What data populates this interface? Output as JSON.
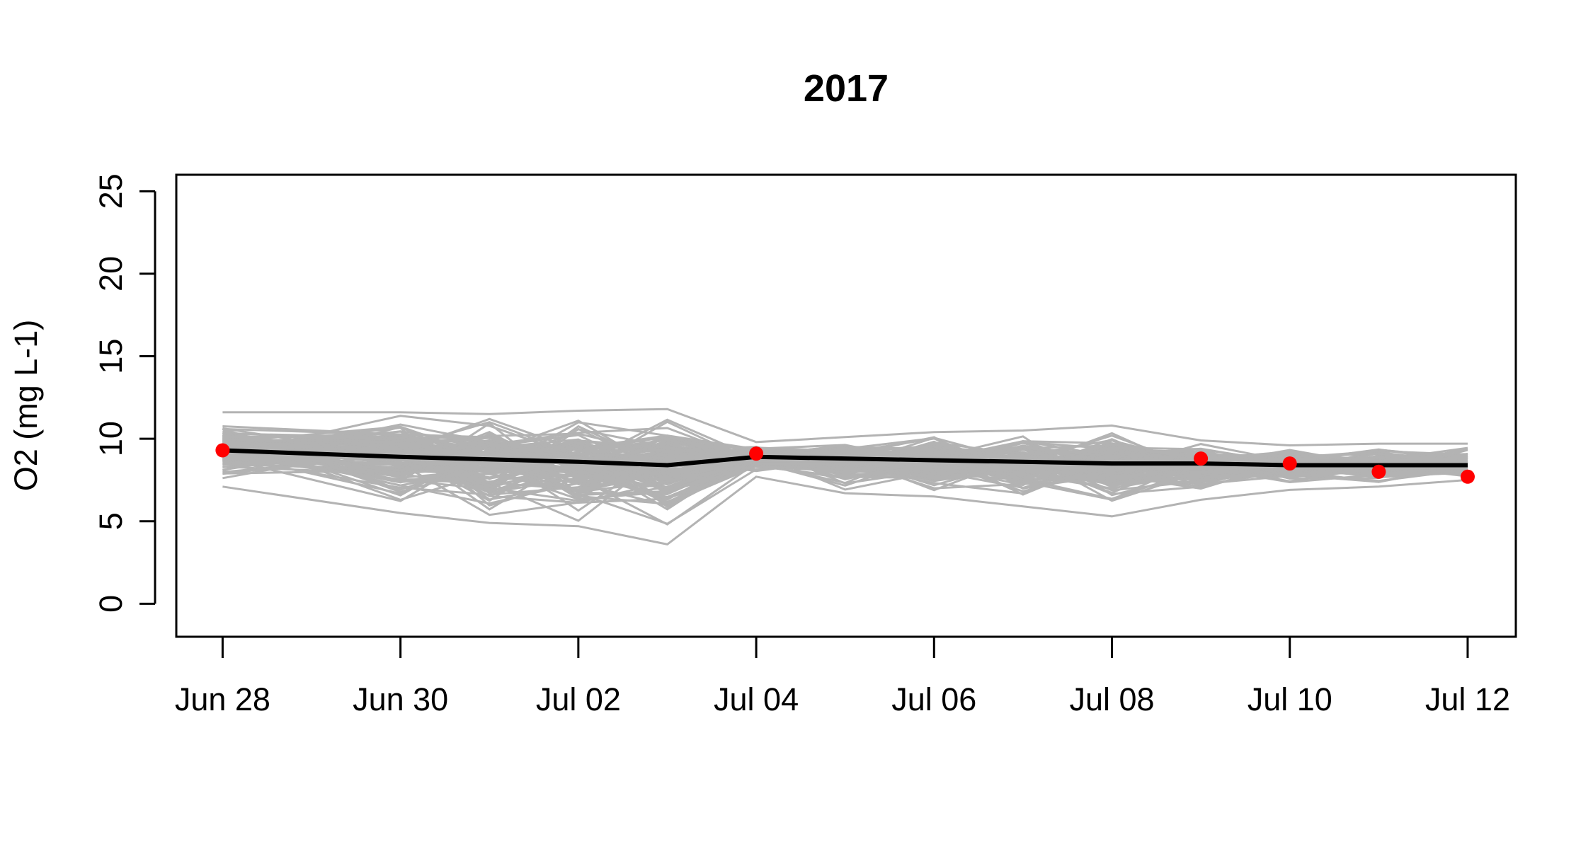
{
  "chart_data": {
    "type": "line",
    "title": "2017",
    "xlabel": "",
    "ylabel": "O2 (mg L-1)",
    "x_axis_type": "date",
    "x_ticks": [
      "2017-06-28",
      "2017-06-30",
      "2017-07-02",
      "2017-07-04",
      "2017-07-06",
      "2017-07-08",
      "2017-07-10",
      "2017-07-12"
    ],
    "x_tick_labels": [
      "Jun 28",
      "Jun 30",
      "Jul 02",
      "Jul 04",
      "Jul 06",
      "Jul 08",
      "Jul 10",
      "Jul 12"
    ],
    "xlim": [
      "2017-06-27T11:30",
      "2017-07-12T13:00"
    ],
    "y_ticks": [
      0,
      5,
      10,
      15,
      20,
      25
    ],
    "ylim": [
      -2,
      26
    ],
    "grid": false,
    "legend": "none",
    "colors": {
      "ensemble": "#b3b3b3",
      "mean": "#000000",
      "observed": "#ff0000"
    },
    "ensemble_dates": [
      "2017-06-28",
      "2017-06-30",
      "2017-07-01",
      "2017-07-02",
      "2017-07-03",
      "2017-07-04",
      "2017-07-05",
      "2017-07-06",
      "2017-07-07",
      "2017-07-08",
      "2017-07-09",
      "2017-07-10",
      "2017-07-11",
      "2017-07-12"
    ],
    "ensemble_envelope": {
      "upper": [
        11.6,
        11.6,
        11.5,
        11.7,
        11.8,
        9.8,
        10.1,
        10.4,
        10.5,
        10.8,
        9.9,
        9.6,
        9.7,
        9.7
      ],
      "lower": [
        7.1,
        5.5,
        4.9,
        4.7,
        3.6,
        7.7,
        6.7,
        6.5,
        5.9,
        5.3,
        6.3,
        6.9,
        7.1,
        7.5
      ]
    },
    "series": [
      {
        "role": "mean",
        "x": [
          "2017-06-28",
          "2017-06-30",
          "2017-07-01",
          "2017-07-02",
          "2017-07-03",
          "2017-07-04",
          "2017-07-05",
          "2017-07-06",
          "2017-07-07",
          "2017-07-08",
          "2017-07-09",
          "2017-07-10",
          "2017-07-11",
          "2017-07-12"
        ],
        "values": [
          9.3,
          8.9,
          8.75,
          8.6,
          8.4,
          8.9,
          8.8,
          8.7,
          8.6,
          8.5,
          8.5,
          8.4,
          8.4,
          8.4
        ]
      },
      {
        "role": "observed",
        "x": [
          "2017-06-28",
          "2017-07-04",
          "2017-07-09",
          "2017-07-10",
          "2017-07-11",
          "2017-07-12"
        ],
        "values": [
          9.3,
          9.1,
          8.8,
          8.5,
          8.0,
          7.7
        ]
      }
    ]
  }
}
